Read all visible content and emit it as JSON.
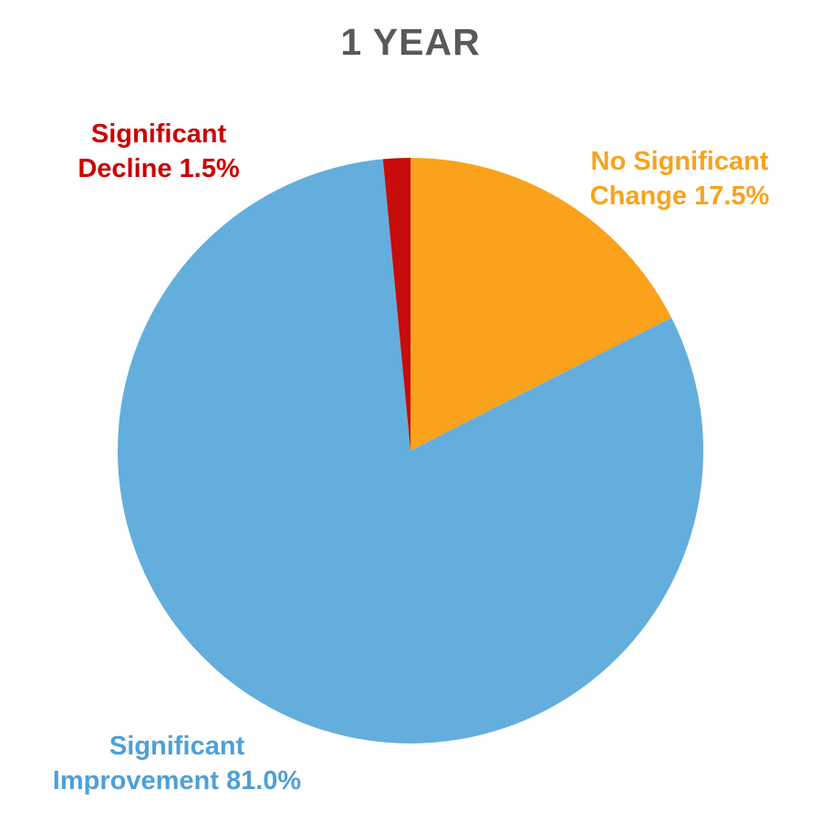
{
  "title": "1 YEAR",
  "colors": {
    "title": "#595959",
    "background": "#FFFFFF"
  },
  "chart_data": {
    "type": "pie",
    "title": "1 YEAR",
    "start_angle_deg": 0,
    "direction": "clockwise",
    "legend": "none",
    "labels_position": "outside",
    "categories": [
      "No Significant Change",
      "Significant Improvement",
      "Significant Decline"
    ],
    "values": [
      17.5,
      81.0,
      1.5
    ],
    "slices": [
      {
        "name": "No Significant Change",
        "value_pct": 17.5,
        "color": "#FAA21B",
        "label_color": "#FAA21B",
        "label_line1": "No Significant",
        "label_line2": "Change 17.5%"
      },
      {
        "name": "Significant Improvement",
        "value_pct": 81.0,
        "color": "#63AEDC",
        "label_color": "#4FA0D6",
        "label_line1": "Significant",
        "label_line2": "Improvement 81.0%"
      },
      {
        "name": "Significant Decline",
        "value_pct": 1.5,
        "color": "#C80B0B",
        "label_color": "#CC0000",
        "label_line1": "Significant",
        "label_line2": "Decline 1.5%"
      }
    ]
  }
}
